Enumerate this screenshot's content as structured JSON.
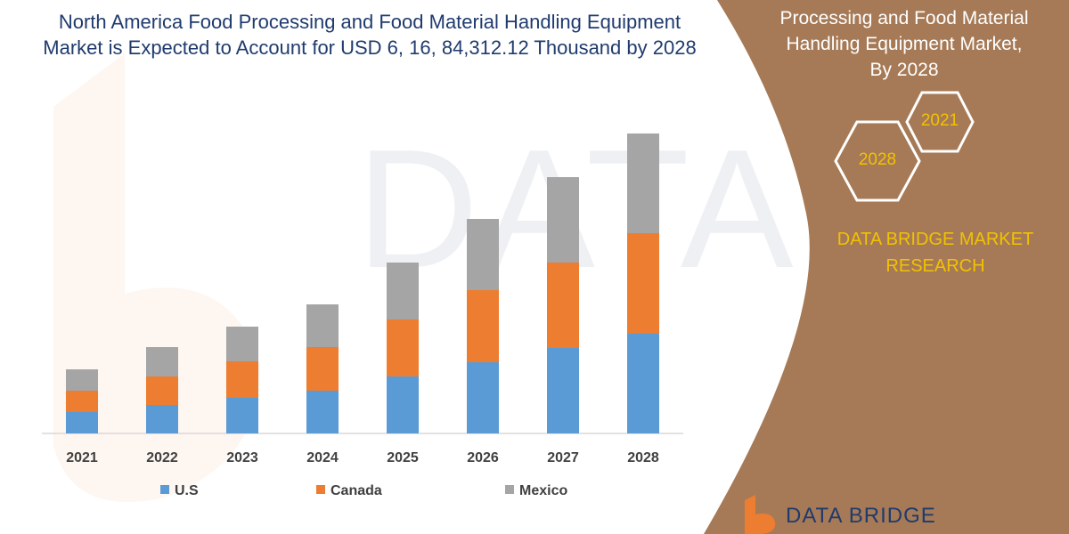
{
  "chart_data": {
    "type": "bar",
    "stacked": true,
    "title_lines": [
      "North America Food Processing and Food Material Handling Equipment",
      "Market is Expected to Account for USD 6, 16, 84,312.12 Thousand by 2028"
    ],
    "categories": [
      "2021",
      "2022",
      "2023",
      "2024",
      "2025",
      "2026",
      "2027",
      "2028"
    ],
    "series": [
      {
        "name": "U.S",
        "color": "#5b9bd5",
        "values": [
          24,
          32,
          40,
          48,
          64,
          80,
          96,
          112
        ]
      },
      {
        "name": "Canada",
        "color": "#ed7d31",
        "values": [
          24,
          32,
          41,
          49,
          64,
          81,
          96,
          113
        ]
      },
      {
        "name": "Mexico",
        "color": "#a5a5a5",
        "values": [
          24,
          33,
          39,
          48,
          64,
          80,
          96,
          112
        ]
      }
    ],
    "ylim": [
      0,
      340
    ],
    "grid": false,
    "legend": "bottom"
  },
  "panel": {
    "title_lines": [
      "Processing and Food Material",
      "Handling Equipment Market,",
      "By 2028"
    ],
    "hex_labels": [
      "2021",
      "2028"
    ],
    "brand": [
      "DATA BRIDGE MARKET",
      "RESEARCH"
    ]
  },
  "logo": {
    "text": "DATA BRIDGE"
  },
  "colors": {
    "panel": "#a67a56",
    "title": "#1f3b6e",
    "accent": "#f2c200"
  }
}
